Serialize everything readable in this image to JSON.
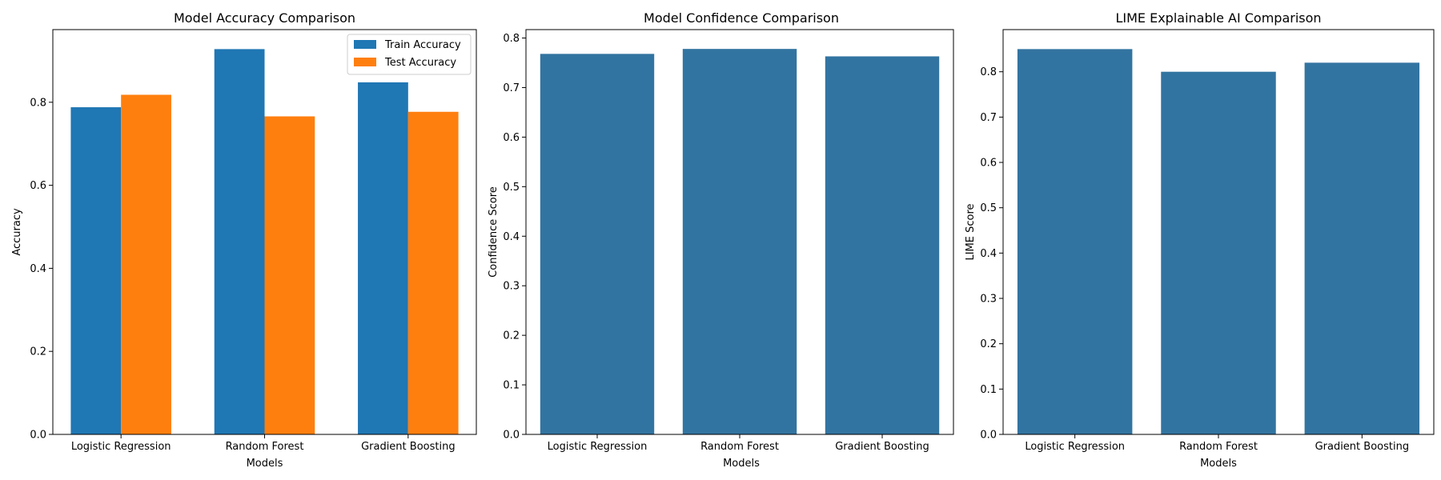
{
  "colors": {
    "train": "#1f77b4",
    "test": "#ff7f0e",
    "seaborn_blue": "#3274a1",
    "frame": "#000000",
    "legend_border": "#cccccc"
  },
  "chart_data": [
    {
      "type": "bar",
      "title": "Model Accuracy Comparison",
      "xlabel": "Models",
      "ylabel": "Accuracy",
      "categories": [
        "Logistic Regression",
        "Random Forest",
        "Gradient Boosting"
      ],
      "series": [
        {
          "name": "Train Accuracy",
          "values": [
            0.788,
            0.928,
            0.848
          ]
        },
        {
          "name": "Test Accuracy",
          "values": [
            0.818,
            0.766,
            0.777
          ]
        }
      ],
      "ylim": [
        0,
        0.975
      ],
      "yticks": [
        "0.0",
        "0.2",
        "0.4",
        "0.6",
        "0.8"
      ],
      "legend": "top-right"
    },
    {
      "type": "bar",
      "title": "Model Confidence Comparison",
      "xlabel": "Models",
      "ylabel": "Confidence Score",
      "categories": [
        "Logistic Regression",
        "Random Forest",
        "Gradient Boosting"
      ],
      "series": [
        {
          "name": "Confidence",
          "values": [
            0.768,
            0.778,
            0.763
          ]
        }
      ],
      "ylim": [
        0,
        0.817
      ],
      "yticks": [
        "0.0",
        "0.1",
        "0.2",
        "0.3",
        "0.4",
        "0.5",
        "0.6",
        "0.7",
        "0.8"
      ]
    },
    {
      "type": "bar",
      "title": "LIME Explainable AI Comparison",
      "xlabel": "Models",
      "ylabel": "LIME Score",
      "categories": [
        "Logistic Regression",
        "Random Forest",
        "Gradient Boosting"
      ],
      "series": [
        {
          "name": "LIME",
          "values": [
            0.85,
            0.8,
            0.82
          ]
        }
      ],
      "ylim": [
        0,
        0.893
      ],
      "yticks": [
        "0.0",
        "0.1",
        "0.2",
        "0.3",
        "0.4",
        "0.5",
        "0.6",
        "0.7",
        "0.8"
      ]
    }
  ]
}
